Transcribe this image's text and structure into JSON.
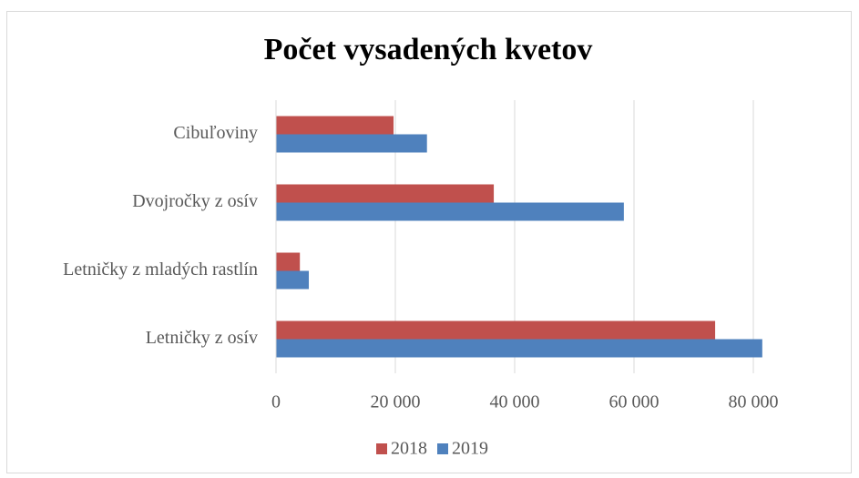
{
  "chart_data": {
    "type": "hbar",
    "title": "Počet vysadených kvetov",
    "categories": [
      "Cibuľoviny",
      "Dvojročky z osív",
      "Letničky z mladých rastlín",
      "Letničky z osív"
    ],
    "series": [
      {
        "name": "2018",
        "color": "#c0504d",
        "values": [
          19700,
          36500,
          4000,
          73600
        ]
      },
      {
        "name": "2019",
        "color": "#4f81bd",
        "values": [
          25300,
          58300,
          5500,
          81500
        ]
      }
    ],
    "xlim": [
      0,
      90000
    ],
    "xticks": [
      0,
      {
        "value": 20000,
        "label": "20 000"
      },
      {
        "value": 40000,
        "label": "40 000"
      },
      {
        "value": 60000,
        "label": "60 000"
      },
      {
        "value": 80000,
        "label": "80 000"
      }
    ],
    "grid": true,
    "legend": "bottom"
  }
}
